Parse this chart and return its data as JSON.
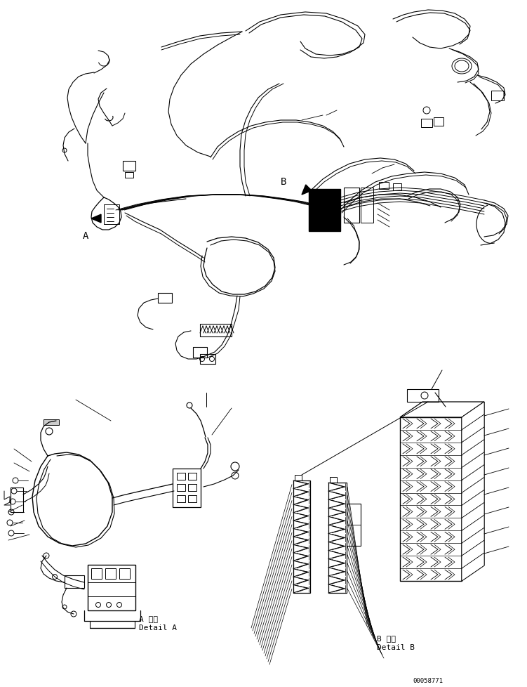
{
  "bg_color": "#ffffff",
  "line_color": "#000000",
  "fig_width": 7.51,
  "fig_height": 9.79,
  "dpi": 100,
  "label_A": "A",
  "label_B": "B",
  "detail_A_line1": "A 詳細",
  "detail_A_line2": "Detail A",
  "detail_B_line1": "B 詳細",
  "detail_B_line2": "Detail B",
  "part_number": "00058771",
  "font_size_label": 10,
  "font_size_detail": 7,
  "font_size_part": 6.5
}
